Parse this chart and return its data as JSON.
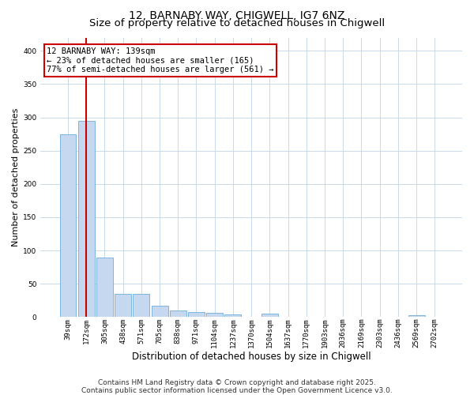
{
  "title": "12, BARNABY WAY, CHIGWELL, IG7 6NZ",
  "subtitle": "Size of property relative to detached houses in Chigwell",
  "xlabel": "Distribution of detached houses by size in Chigwell",
  "ylabel": "Number of detached properties",
  "categories": [
    "39sqm",
    "172sqm",
    "305sqm",
    "438sqm",
    "571sqm",
    "705sqm",
    "838sqm",
    "971sqm",
    "1104sqm",
    "1237sqm",
    "1370sqm",
    "1504sqm",
    "1637sqm",
    "1770sqm",
    "1903sqm",
    "2036sqm",
    "2169sqm",
    "2303sqm",
    "2436sqm",
    "2569sqm",
    "2702sqm"
  ],
  "values": [
    275,
    295,
    90,
    35,
    35,
    17,
    10,
    8,
    6,
    4,
    0,
    5,
    0,
    0,
    0,
    0,
    0,
    0,
    0,
    3,
    0
  ],
  "bar_color": "#c5d8f0",
  "bar_edge_color": "#6baed6",
  "vline_x": 1.0,
  "vline_color": "#cc0000",
  "annotation_text": "12 BARNABY WAY: 139sqm\n← 23% of detached houses are smaller (165)\n77% of semi-detached houses are larger (561) →",
  "annotation_box_color": "#cc0000",
  "ylim": [
    0,
    420
  ],
  "yticks": [
    0,
    50,
    100,
    150,
    200,
    250,
    300,
    350,
    400
  ],
  "background_color": "#ffffff",
  "grid_color": "#c8daea",
  "footer_line1": "Contains HM Land Registry data © Crown copyright and database right 2025.",
  "footer_line2": "Contains public sector information licensed under the Open Government Licence v3.0.",
  "title_fontsize": 10,
  "subtitle_fontsize": 9.5,
  "xlabel_fontsize": 8.5,
  "ylabel_fontsize": 8,
  "tick_fontsize": 6.5,
  "annotation_fontsize": 7.5,
  "footer_fontsize": 6.5
}
